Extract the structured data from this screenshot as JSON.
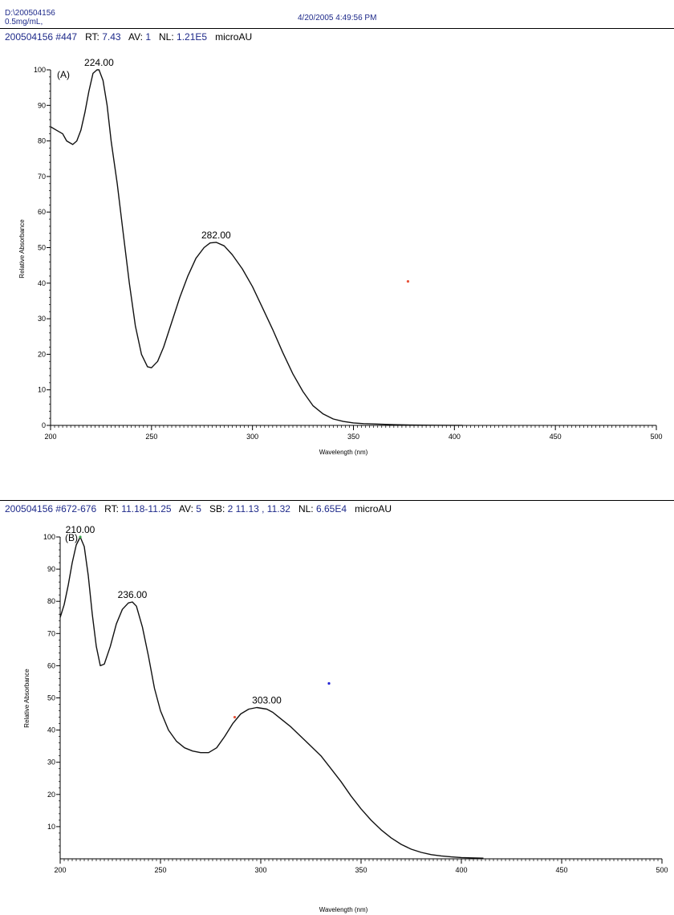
{
  "header": {
    "path": "D:\\200504156",
    "sample": "0.5mg/mL,",
    "datetime": "4/20/2005 4:49:56 PM"
  },
  "panels": [
    {
      "id": "A",
      "info": {
        "scan": "200504156 #447",
        "rt_label": "RT:",
        "rt_value": "7.43",
        "av_label": "AV:",
        "av_value": "1",
        "nl_label": "NL:",
        "nl_value": "1.21E5",
        "unit": "microAU"
      },
      "panel_label": "(A)",
      "xlabel": "Wavelength (nm)",
      "ylabel": "Relative Absorbance"
    },
    {
      "id": "B",
      "info": {
        "scan": "200504156 #672-676",
        "rt_label": "RT:",
        "rt_value": "11.18-11.25",
        "av_label": "AV:",
        "av_value": "5",
        "sb_label": "SB:",
        "sb_value": "2 11.13 , 11.32",
        "nl_label": "NL:",
        "nl_value": "6.65E4",
        "unit": "microAU"
      },
      "panel_label": "(B)",
      "xlabel": "Wavelength (nm)",
      "ylabel": "Relative Absorbance"
    }
  ],
  "chart_data": [
    {
      "type": "line",
      "xlabel": "Wavelength (nm)",
      "ylabel": "Relative Absorbance",
      "xlim": [
        200,
        500
      ],
      "ylim": [
        0,
        100
      ],
      "xticks": [
        200,
        250,
        300,
        350,
        400,
        450,
        500
      ],
      "yticks": [
        0,
        10,
        20,
        30,
        40,
        50,
        60,
        70,
        80,
        90,
        100
      ],
      "grid": false,
      "series": [
        {
          "x": [
            200,
            203,
            206,
            208,
            211,
            213,
            215,
            217,
            219,
            221,
            223,
            224,
            226,
            228,
            230,
            233,
            236,
            239,
            242,
            245,
            248,
            250,
            253,
            256,
            260,
            264,
            268,
            272,
            276,
            279,
            282,
            286,
            290,
            295,
            300,
            305,
            310,
            315,
            320,
            325,
            330,
            335,
            340,
            345,
            350,
            355,
            360,
            370,
            380,
            390,
            400,
            404
          ],
          "y": [
            84,
            83,
            82,
            80,
            79,
            80,
            83,
            88,
            94,
            99,
            100,
            100,
            97,
            90,
            80,
            68,
            54,
            40,
            28,
            20,
            16.5,
            16.2,
            18,
            22,
            29,
            36,
            42,
            47,
            50,
            51.3,
            51.5,
            50.5,
            48,
            44,
            39,
            33,
            27,
            20.5,
            14.5,
            9.5,
            5.5,
            3.2,
            1.8,
            1.1,
            0.7,
            0.5,
            0.4,
            0.2,
            0.1,
            0.05,
            0.03,
            0.03
          ]
        }
      ],
      "annotations": [
        {
          "label": "224.00",
          "x": 224,
          "y": 100
        },
        {
          "label": "282.00",
          "x": 282,
          "y": 51.5
        }
      ],
      "markers": [
        {
          "x": 377,
          "y": 40.5,
          "color": "#e8533a"
        }
      ]
    },
    {
      "type": "line",
      "xlabel": "Wavelength (nm)",
      "ylabel": "Relative Absorbance",
      "xlim": [
        200,
        500
      ],
      "ylim": [
        0,
        100
      ],
      "xticks": [
        200,
        250,
        300,
        350,
        400,
        450,
        500
      ],
      "yticks": [
        10,
        20,
        30,
        40,
        50,
        60,
        70,
        80,
        90,
        100
      ],
      "grid": false,
      "series": [
        {
          "x": [
            200,
            202,
            204,
            206,
            208,
            210,
            212,
            214,
            216,
            218,
            220,
            222,
            225,
            228,
            231,
            234,
            236,
            238,
            241,
            244,
            247,
            250,
            254,
            258,
            262,
            266,
            270,
            274,
            278,
            282,
            286,
            290,
            294,
            298,
            303,
            306,
            310,
            315,
            320,
            325,
            330,
            335,
            340,
            345,
            350,
            355,
            360,
            365,
            370,
            375,
            380,
            385,
            390,
            395,
            400,
            405,
            411
          ],
          "y": [
            75,
            79,
            85,
            92,
            97.5,
            100,
            97,
            88,
            76,
            66,
            60,
            60.5,
            66,
            73,
            77.5,
            79.5,
            79.8,
            78.5,
            72,
            63,
            53,
            46,
            40,
            36.5,
            34.5,
            33.5,
            33,
            33,
            34.5,
            38,
            42,
            45,
            46.5,
            47,
            46.5,
            45.5,
            43.5,
            41,
            38,
            35,
            32,
            28,
            24,
            19.5,
            15.5,
            12,
            9,
            6.5,
            4.5,
            3,
            2,
            1.3,
            0.9,
            0.6,
            0.4,
            0.3,
            0.2
          ]
        }
      ],
      "annotations": [
        {
          "label": "210.00",
          "x": 210,
          "y": 100
        },
        {
          "label": "236.00",
          "x": 236,
          "y": 79.8
        },
        {
          "label": "303.00",
          "x": 303,
          "y": 47
        }
      ],
      "markers": [
        {
          "x": 210,
          "y": 100,
          "color": "#3aa84a"
        },
        {
          "x": 287,
          "y": 44,
          "color": "#e8533a"
        },
        {
          "x": 334,
          "y": 54.5,
          "color": "#2424d6"
        }
      ]
    }
  ]
}
